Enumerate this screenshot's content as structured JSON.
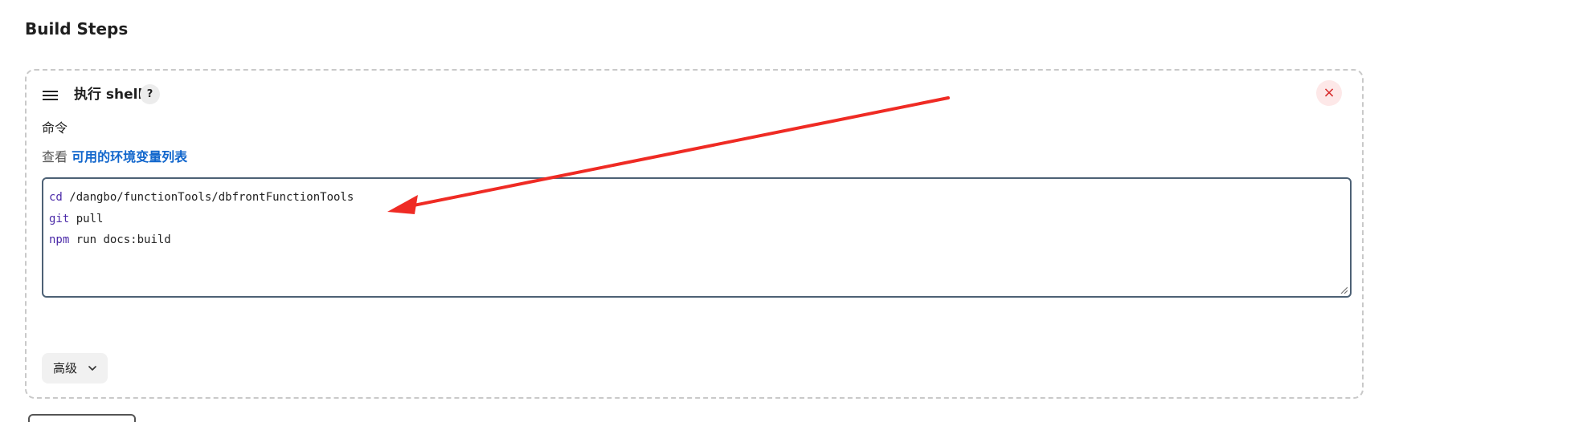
{
  "section": {
    "title": "Build Steps"
  },
  "step": {
    "title": "执行 shell",
    "help_label": "?",
    "close_label": "×",
    "command_label": "命令",
    "env_prefix": "查看 ",
    "env_link": "可用的环境变量列表",
    "advanced_label": "高级"
  },
  "script_lines": [
    {
      "cmd": "cd",
      "rest": " /dangbo/functionTools/dbfrontFunctionTools"
    },
    {
      "cmd": "git",
      "rest": " pull"
    },
    {
      "cmd": "npm",
      "rest": " run docs:build"
    }
  ],
  "colors": {
    "accent": "#1166cc",
    "close_red": "#d62828",
    "annotation_arrow": "#ef2b24"
  }
}
